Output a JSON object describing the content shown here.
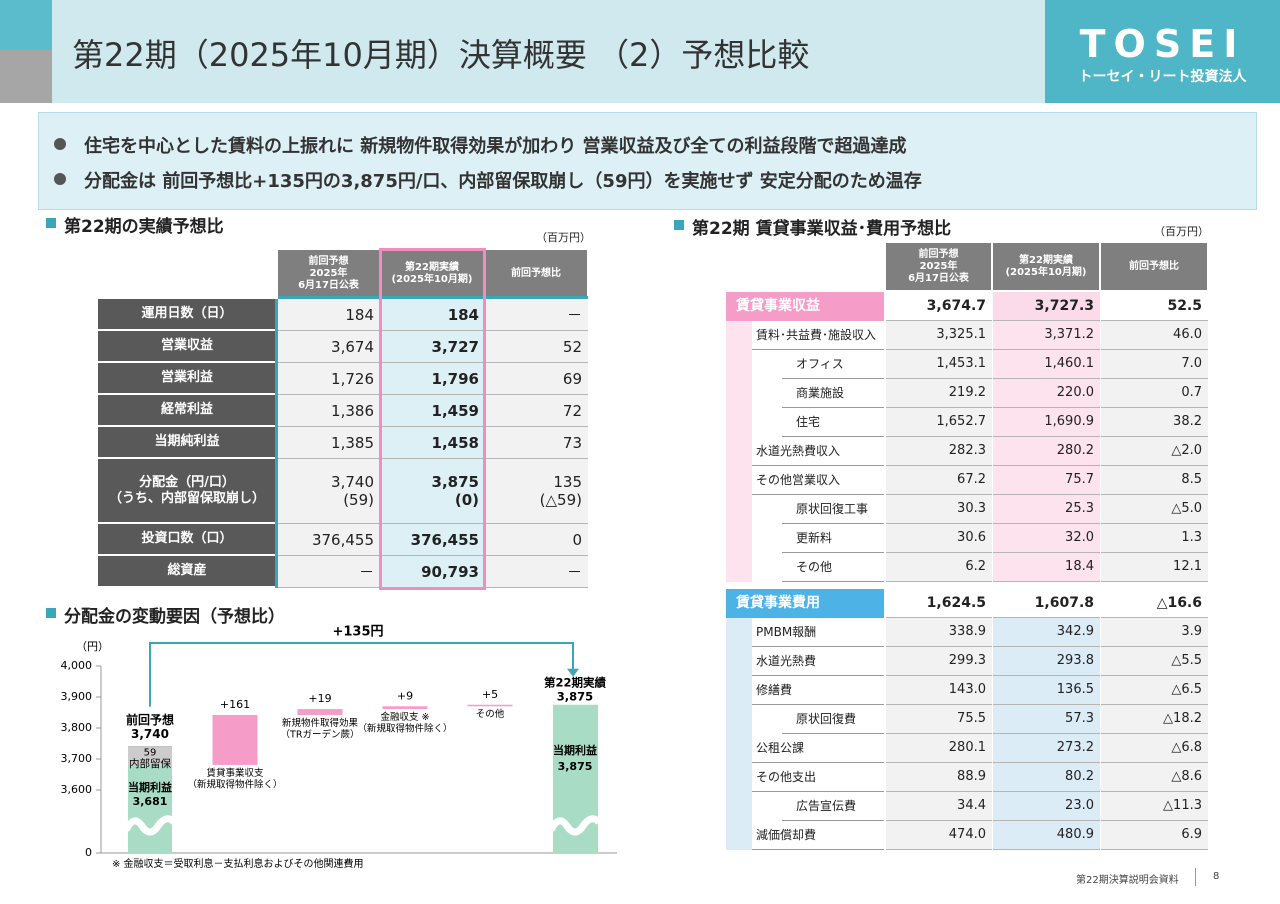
{
  "header": {
    "title": "第22期（2025年10月期）決算概要 （2）予想比較",
    "logo": "TOSEI",
    "logo_subtitle": "トーセイ・リート投資法人"
  },
  "bullets": [
    "住宅を中心とした賃料の上振れに 新規物件取得効果が加わり 営業収益及び全ての利益段階で超過達成",
    "分配金は 前回予想比+135円の3,875円/口、内部留保取崩し（59円）を実施せず 安定分配のため温存"
  ],
  "left_table": {
    "title": "第22期の実績予想比",
    "unit": "（百万円）",
    "headers": [
      "前回予想\n2025年\n6月17日公表",
      "第22期実績\n(2025年10月期)",
      "前回予想比"
    ],
    "rows": [
      [
        "運用日数（日）",
        "184",
        "184",
        "－"
      ],
      [
        "営業収益",
        "3,674",
        "3,727",
        "52"
      ],
      [
        "営業利益",
        "1,726",
        "1,796",
        "69"
      ],
      [
        "経常利益",
        "1,386",
        "1,459",
        "72"
      ],
      [
        "当期純利益",
        "1,385",
        "1,458",
        "73"
      ],
      [
        "分配金（円/口）\n（うち、内部留保取崩し）",
        "3,740\n(59)",
        "3,875\n(0)",
        "135\n(△59)"
      ],
      [
        "投資口数（口）",
        "376,455",
        "376,455",
        "0"
      ],
      [
        "総資産",
        "－",
        "90,793",
        "－"
      ]
    ]
  },
  "right_table": {
    "title": "第22期 賃貸事業収益･費用予想比",
    "unit": "（百万円）",
    "headers": [
      "前回予想\n2025年\n6月17日公表",
      "第22期実績\n(2025年10月期)",
      "前回予想比"
    ],
    "sections": [
      {
        "name": "賃貸事業収益",
        "values": [
          "3,674.7",
          "3,727.3",
          "52.5"
        ],
        "items": [
          {
            "name": "賃料･共益費･施設収入",
            "values": [
              "3,325.1",
              "3,371.2",
              "46.0"
            ],
            "children": [
              {
                "name": "オフィス",
                "values": [
                  "1,453.1",
                  "1,460.1",
                  "7.0"
                ]
              },
              {
                "name": "商業施設",
                "values": [
                  "219.2",
                  "220.0",
                  "0.7"
                ]
              },
              {
                "name": "住宅",
                "values": [
                  "1,652.7",
                  "1,690.9",
                  "38.2"
                ]
              }
            ]
          },
          {
            "name": "水道光熱費収入",
            "values": [
              "282.3",
              "280.2",
              "△2.0"
            ]
          },
          {
            "name": "その他営業収入",
            "values": [
              "67.2",
              "75.7",
              "8.5"
            ],
            "children": [
              {
                "name": "原状回復工事",
                "values": [
                  "30.3",
                  "25.3",
                  "△5.0"
                ]
              },
              {
                "name": "更新料",
                "values": [
                  "30.6",
                  "32.0",
                  "1.3"
                ]
              },
              {
                "name": "その他",
                "values": [
                  "6.2",
                  "18.4",
                  "12.1"
                ]
              }
            ]
          }
        ]
      },
      {
        "name": "賃貸事業費用",
        "values": [
          "1,624.5",
          "1,607.8",
          "△16.6"
        ],
        "items": [
          {
            "name": "PMBM報酬",
            "values": [
              "338.9",
              "342.9",
              "3.9"
            ]
          },
          {
            "name": "水道光熱費",
            "values": [
              "299.3",
              "293.8",
              "△5.5"
            ]
          },
          {
            "name": "修繕費",
            "values": [
              "143.0",
              "136.5",
              "△6.5"
            ],
            "children": [
              {
                "name": "原状回復費",
                "values": [
                  "75.5",
                  "57.3",
                  "△18.2"
                ]
              }
            ]
          },
          {
            "name": "公租公課",
            "values": [
              "280.1",
              "273.2",
              "△6.8"
            ]
          },
          {
            "name": "その他支出",
            "values": [
              "88.9",
              "80.2",
              "△8.6"
            ],
            "children": [
              {
                "name": "広告宣伝費",
                "values": [
                  "34.4",
                  "23.0",
                  "△11.3"
                ]
              }
            ]
          },
          {
            "name": "減価償却費",
            "values": [
              "474.0",
              "480.9",
              "6.9"
            ]
          }
        ]
      }
    ]
  },
  "chart_data": {
    "type": "waterfall",
    "title": "分配金の変動要因（予想比）",
    "y_label": "（円）",
    "ylim": [
      0,
      4000
    ],
    "yticks": [
      0,
      {
        "value": 3600,
        "label": "3,600"
      },
      {
        "value": 3700,
        "label": "3,700"
      },
      {
        "value": 3800,
        "label": "3,800"
      },
      {
        "value": 3900,
        "label": "3,900"
      },
      {
        "value": 4000,
        "label": "4,000"
      }
    ],
    "start": {
      "name": "前回予想",
      "value": 3740,
      "value_label": "3,740",
      "parts": [
        {
          "name": "当期利益",
          "value": 3681,
          "value_label": "3,681",
          "color": "#a8dcc4"
        },
        {
          "name": "内部留保",
          "value": 59,
          "color": "#cccccc"
        }
      ]
    },
    "steps": [
      {
        "name": "賃貸事業収支\n（新規取得物件除く）",
        "value": 161,
        "value_label": "+161"
      },
      {
        "name": "新規物件取得効果\n（TRガーデン蕨）",
        "value": 19,
        "value_label": "+19"
      },
      {
        "name": "金融収支 ※\n（新規取得物件除く）",
        "value": 9,
        "value_label": "+9"
      },
      {
        "name": "その他",
        "value": 5,
        "value_label": "+5"
      }
    ],
    "step_color": "#f59cc8",
    "end": {
      "name": "第22期実績",
      "value": 3875,
      "value_label": "3,875",
      "parts": [
        {
          "name": "当期利益",
          "value": 3875,
          "value_label": "3,875",
          "color": "#a8dcc4"
        }
      ]
    },
    "bracket_label": "+135円",
    "footnote": "※ 金融収支＝受取利息－支払利息およびその他関連費用"
  },
  "footer": {
    "text": "第22期決算説明会資料",
    "page": "8"
  }
}
